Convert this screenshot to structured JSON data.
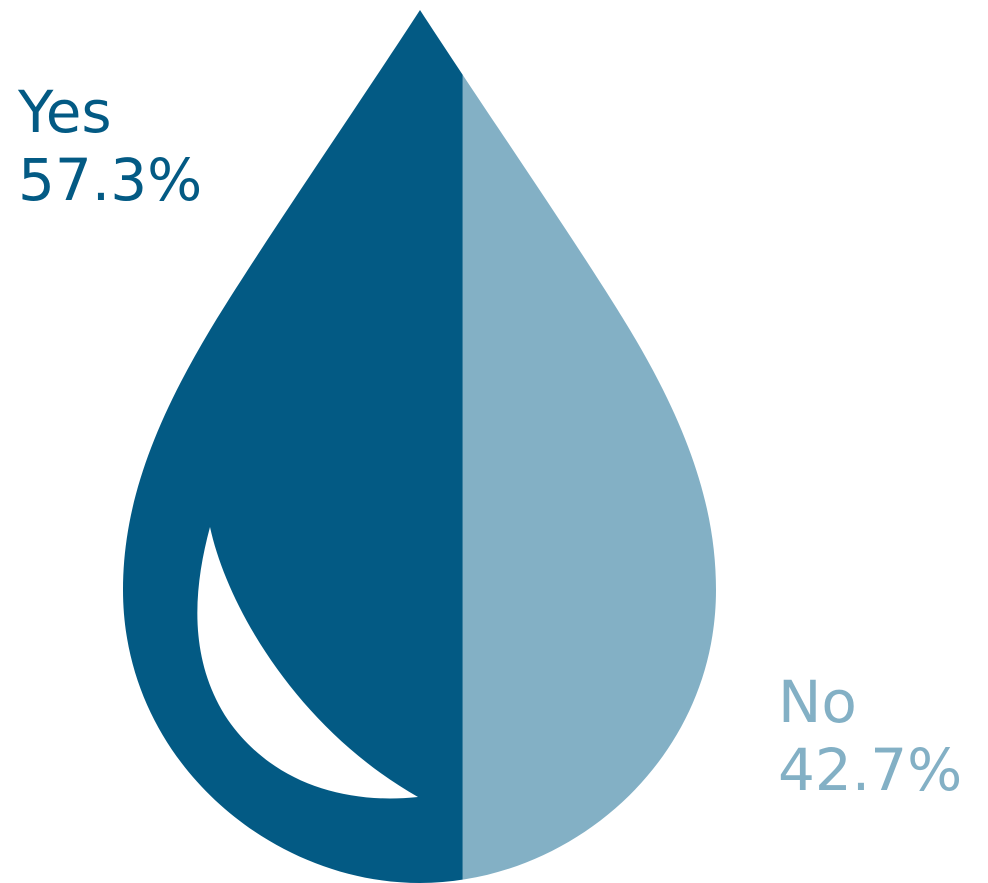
{
  "chart_data": {
    "type": "pie",
    "style": "water-drop split",
    "title": "",
    "categories": [
      "Yes",
      "No"
    ],
    "values": [
      57.3,
      42.7
    ],
    "value_labels": [
      "57.3%",
      "42.7%"
    ],
    "colors": [
      "#035a84",
      "#83b0c5"
    ]
  },
  "labels": {
    "yes": {
      "name": "Yes",
      "value": "57.3%"
    },
    "no": {
      "name": "No",
      "value": "42.7%"
    }
  }
}
